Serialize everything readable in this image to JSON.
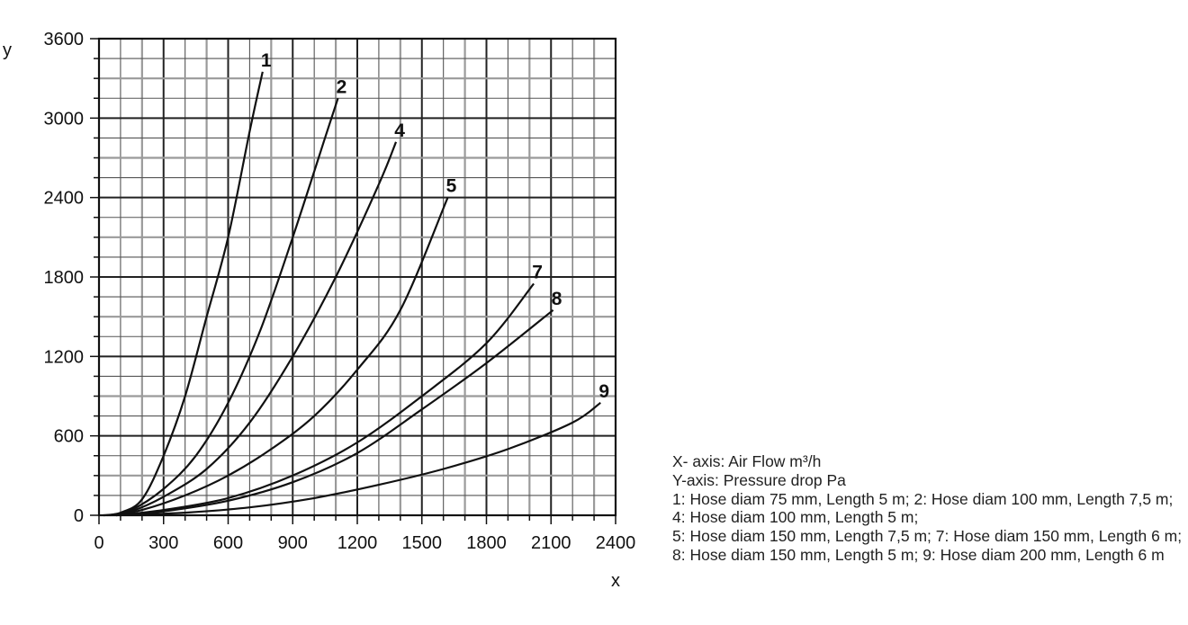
{
  "chart_data": {
    "type": "line",
    "xlabel": "x",
    "ylabel": "y",
    "xlim": [
      0,
      2400
    ],
    "ylim": [
      0,
      3600
    ],
    "x_ticks": [
      "0",
      "300",
      "600",
      "900",
      "1200",
      "1500",
      "1800",
      "2100",
      "2400"
    ],
    "y_ticks": [
      "0",
      "600",
      "1200",
      "1800",
      "2400",
      "3000",
      "3600"
    ],
    "grid": true,
    "series": [
      {
        "name": "1",
        "x": [
          20,
          100,
          200,
          300,
          400,
          500,
          600,
          700,
          760
        ],
        "y": [
          0,
          20,
          120,
          450,
          900,
          1500,
          2100,
          2900,
          3350
        ]
      },
      {
        "name": "2",
        "x": [
          40,
          150,
          300,
          450,
          600,
          750,
          900,
          1050,
          1110
        ],
        "y": [
          0,
          40,
          200,
          450,
          850,
          1400,
          2100,
          2850,
          3150
        ]
      },
      {
        "name": "4",
        "x": [
          50,
          150,
          300,
          500,
          700,
          900,
          1100,
          1300,
          1380
        ],
        "y": [
          0,
          30,
          140,
          350,
          700,
          1200,
          1800,
          2500,
          2820
        ]
      },
      {
        "name": "5",
        "x": [
          60,
          200,
          400,
          600,
          800,
          1000,
          1200,
          1400,
          1620
        ],
        "y": [
          0,
          40,
          150,
          300,
          500,
          750,
          1100,
          1550,
          2400
        ]
      },
      {
        "name": "7",
        "x": [
          80,
          300,
          600,
          900,
          1200,
          1500,
          1800,
          2020
        ],
        "y": [
          0,
          40,
          130,
          300,
          550,
          900,
          1300,
          1750
        ]
      },
      {
        "name": "8",
        "x": [
          80,
          300,
          600,
          900,
          1200,
          1500,
          1800,
          2110
        ],
        "y": [
          0,
          30,
          110,
          250,
          470,
          800,
          1150,
          1550
        ]
      },
      {
        "name": "9",
        "x": [
          100,
          400,
          700,
          1000,
          1300,
          1600,
          1900,
          2200,
          2330
        ],
        "y": [
          0,
          20,
          60,
          130,
          230,
          350,
          500,
          700,
          850
        ]
      }
    ]
  },
  "legend_lines": [
    "X- axis: Air Flow m³/h",
    "Y-axis: Pressure drop Pa",
    "1: Hose diam 75 mm, Length 5 m; 2: Hose diam 100 mm, Length 7,5 m; 4: Hose diam 100 mm, Length 5 m;",
    "5: Hose diam 150 mm, Length 7,5 m; 7: Hose diam 150 mm, Length 6 m;",
    "8: Hose diam 150 mm, Length 5 m; 9: Hose diam 200 mm, Length 6 m"
  ]
}
